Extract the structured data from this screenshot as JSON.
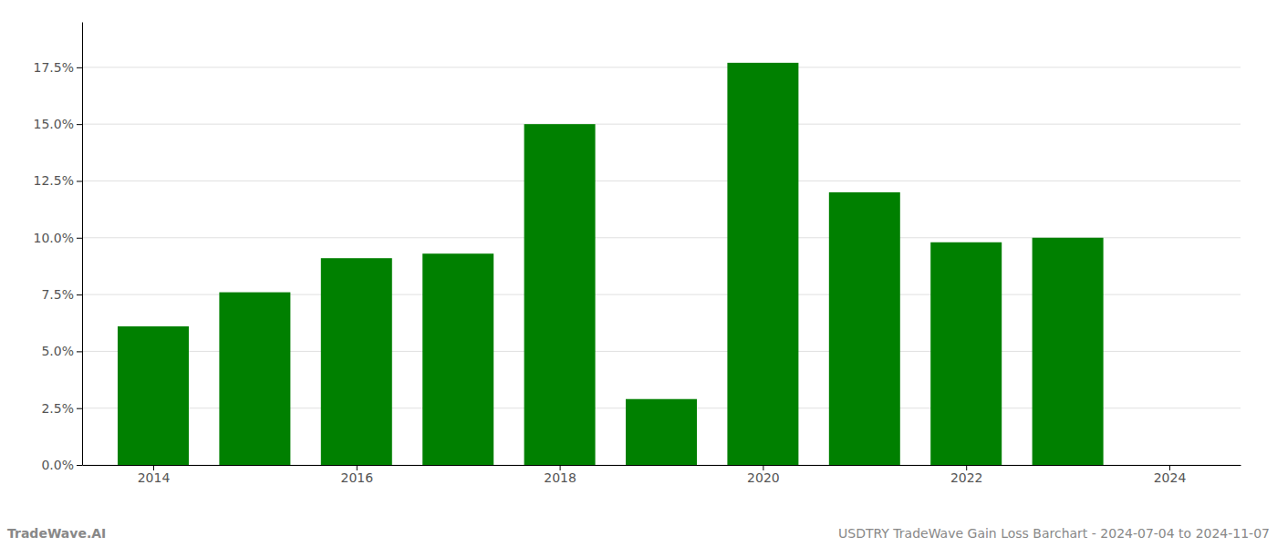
{
  "chart_data": {
    "type": "bar",
    "x": [
      2014,
      2015,
      2016,
      2017,
      2018,
      2019,
      2020,
      2021,
      2022,
      2023
    ],
    "values": [
      0.061,
      0.076,
      0.091,
      0.093,
      0.15,
      0.029,
      0.177,
      0.12,
      0.098,
      0.1
    ],
    "color": "#008000",
    "xlim": [
      2013.3,
      2024.7
    ],
    "xticks": [
      2014,
      2016,
      2018,
      2020,
      2022,
      2024
    ],
    "ylim": [
      0,
      0.195
    ],
    "yticks": [
      {
        "value": 0.0,
        "label": "0.0%"
      },
      {
        "value": 0.025,
        "label": "2.5%"
      },
      {
        "value": 0.05,
        "label": "5.0%"
      },
      {
        "value": 0.075,
        "label": "7.5%"
      },
      {
        "value": 0.1,
        "label": "10.0%"
      },
      {
        "value": 0.125,
        "label": "12.5%"
      },
      {
        "value": 0.15,
        "label": "15.0%"
      },
      {
        "value": 0.175,
        "label": "17.5%"
      }
    ],
    "grid": true,
    "annotations": [
      "TradeWave.AI",
      "USDTRY TradeWave Gain Loss Barchart - 2024-07-04 to 2024-11-07"
    ]
  }
}
